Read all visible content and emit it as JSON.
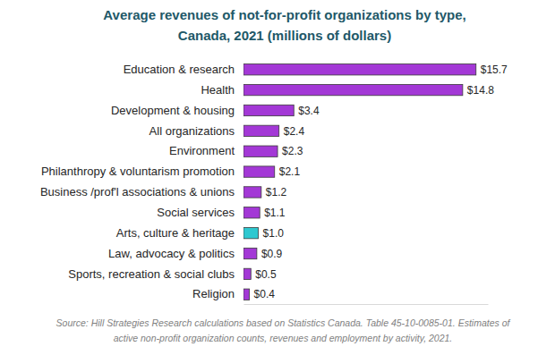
{
  "chart_data": {
    "type": "bar",
    "orientation": "horizontal",
    "title": [
      "Average revenues of not-for-profit organizations by type,",
      "Canada, 2021  (millions of dollars)"
    ],
    "source": [
      "Source: Hill Strategies Research calculations based on Statistics Canada. Table 45-10-0085-01.   Estimates of",
      "active non-profit organization counts, revenues and employment by activity, 2021."
    ],
    "categories": [
      "Education & research",
      "Health",
      "Development & housing",
      "All organizations",
      "Environment",
      "Philanthropy & voluntarism promotion",
      "Business /prof'l associations & unions",
      "Social services",
      "Arts, culture & heritage",
      "Law, advocacy & politics",
      "Sports, recreation & social clubs",
      "Religion"
    ],
    "values": [
      15.7,
      14.8,
      3.4,
      2.4,
      2.3,
      2.1,
      1.2,
      1.1,
      1.0,
      0.9,
      0.5,
      0.4
    ],
    "value_labels": [
      "$15.7",
      "$14.8",
      "$3.4",
      "$2.4",
      "$2.3",
      "$2.1",
      "$1.2",
      "$1.1",
      "$1.0",
      "$0.9",
      "$0.5",
      "$0.4"
    ],
    "colors": [
      "#a338d6",
      "#a338d6",
      "#a338d6",
      "#a338d6",
      "#a338d6",
      "#a338d6",
      "#a338d6",
      "#a338d6",
      "#2ec8d0",
      "#a338d6",
      "#a338d6",
      "#a338d6"
    ],
    "xlim": [
      0,
      16.5
    ],
    "xticks": [],
    "data_labels": true,
    "grid": false,
    "tick_labels": false
  }
}
